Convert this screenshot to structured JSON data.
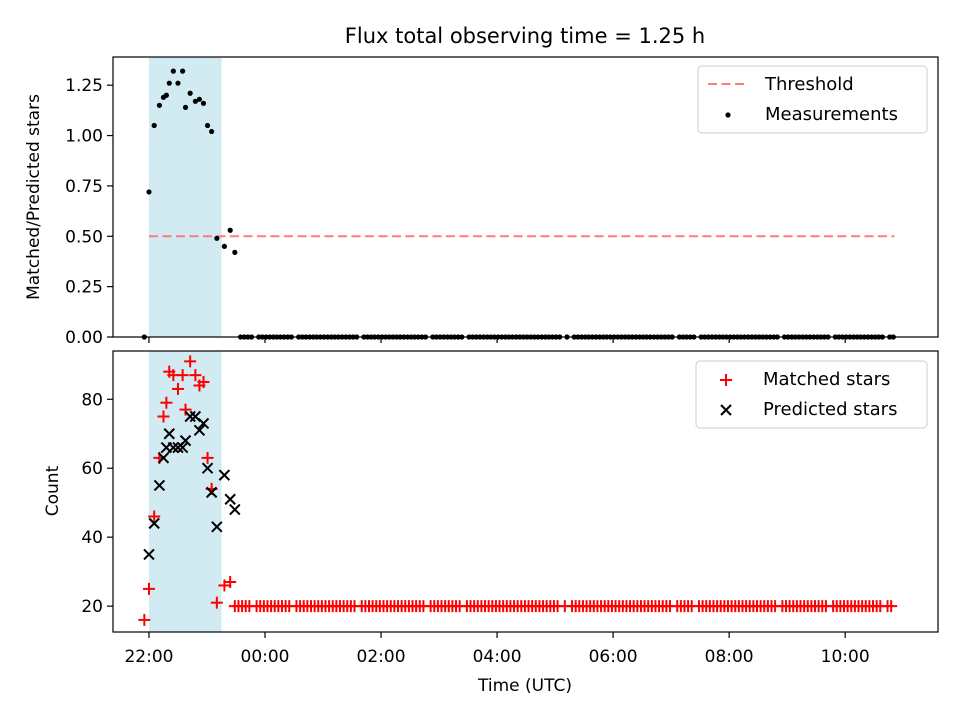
{
  "title": "Flux total observing time = 1.25 h",
  "colors": {
    "threshold": "#ff7b7b",
    "measurement": "#000000",
    "matched": "#ff0000",
    "predicted": "#000000",
    "shade": "#add8e6"
  },
  "chart_data": [
    {
      "type": "scatter",
      "ylabel": "Matched/Predicted stars",
      "xlabel": "",
      "xlim_hours": [
        -0.62,
        13.6
      ],
      "ylim": [
        0,
        1.39
      ],
      "yticks": [
        0.0,
        0.25,
        0.5,
        0.75,
        1.0,
        1.25
      ],
      "ytick_labels": [
        "0.00",
        "0.25",
        "0.50",
        "0.75",
        "1.00",
        "1.25"
      ],
      "shaded_span_hours": [
        0.0,
        1.25
      ],
      "threshold": {
        "label": "Threshold",
        "value": 0.5,
        "x_range_hours": [
          0.0,
          12.85
        ]
      },
      "measurements_label": "Measurements",
      "measurements": {
        "x_hours": [
          -0.08,
          0.0,
          0.09,
          0.18,
          0.25,
          0.3,
          0.35,
          0.42,
          0.5,
          0.58,
          0.63,
          0.71,
          0.8,
          0.87,
          0.94,
          1.01,
          1.08,
          1.17,
          1.3,
          1.4,
          1.48,
          1.58
        ],
        "values": [
          0.0,
          0.72,
          1.05,
          1.15,
          1.19,
          1.2,
          1.26,
          1.32,
          1.26,
          1.32,
          1.14,
          1.21,
          1.17,
          1.18,
          1.16,
          1.05,
          1.02,
          0.49,
          0.45,
          0.53,
          0.42,
          0.0
        ],
        "zero_tail_start_hours": 1.58,
        "zero_tail_end_hours": 12.85,
        "zero_tail_value": 0.0
      }
    },
    {
      "type": "scatter",
      "ylabel": "Count",
      "xlabel": "Time (UTC)",
      "xlim_hours": [
        -0.62,
        13.6
      ],
      "ylim": [
        12.5,
        94
      ],
      "yticks": [
        20,
        40,
        60,
        80
      ],
      "ytick_labels": [
        "20",
        "40",
        "60",
        "80"
      ],
      "xticks_hours": [
        0,
        2,
        4,
        6,
        8,
        10,
        12
      ],
      "xtick_labels": [
        "22:00",
        "00:00",
        "02:00",
        "04:00",
        "06:00",
        "08:00",
        "10:00"
      ],
      "shaded_span_hours": [
        0.0,
        1.25
      ],
      "series": [
        {
          "name": "Matched stars",
          "marker": "+",
          "x_hours": [
            -0.08,
            0.0,
            0.09,
            0.18,
            0.25,
            0.3,
            0.35,
            0.42,
            0.5,
            0.58,
            0.63,
            0.71,
            0.8,
            0.87,
            0.94,
            1.01,
            1.08,
            1.17,
            1.3,
            1.4,
            1.48
          ],
          "values": [
            16,
            25,
            46,
            63,
            75,
            79,
            88,
            87,
            83,
            87,
            77,
            91,
            87,
            84,
            85,
            63,
            54,
            21,
            26,
            27,
            20
          ],
          "tail_start_hours": 1.48,
          "tail_end_hours": 12.85,
          "tail_value": 20
        },
        {
          "name": "Predicted stars",
          "marker": "x",
          "x_hours": [
            0.0,
            0.09,
            0.18,
            0.25,
            0.3,
            0.35,
            0.42,
            0.5,
            0.58,
            0.63,
            0.71,
            0.8,
            0.87,
            0.94,
            1.01,
            1.08,
            1.17,
            1.3,
            1.4,
            1.48
          ],
          "values": [
            35,
            44,
            55,
            63,
            66,
            70,
            66,
            66,
            66,
            68,
            75,
            75,
            71,
            73,
            60,
            53,
            43,
            58,
            51,
            48
          ]
        }
      ]
    }
  ]
}
